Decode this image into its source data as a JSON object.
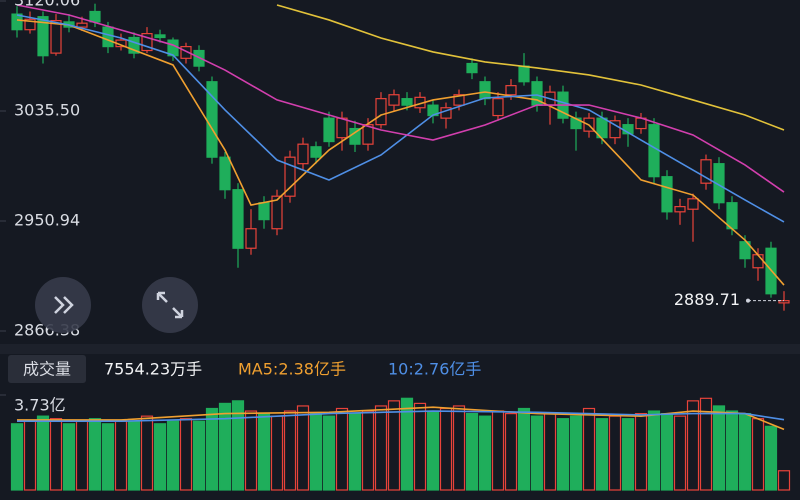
{
  "chart_data": {
    "type": "candlestick",
    "ylim": [
      2866.38,
      3120.06
    ],
    "yticks": [
      {
        "value": 3120.06,
        "label": "3120.06"
      },
      {
        "value": 3035.5,
        "label": "3035.50"
      },
      2950.94,
      2866.38
    ],
    "up_color": "#e8433a",
    "down_color": "#1fae5b",
    "open": [
      3110,
      3098,
      3108,
      3080,
      3104,
      3100,
      3112,
      3100,
      3085,
      3092,
      3082,
      3094,
      3090,
      3076,
      3082,
      3058,
      3000,
      2975,
      2930,
      2965,
      2945,
      2970,
      2995,
      3008,
      3030,
      3015,
      3022,
      3010,
      3025,
      3040,
      3045,
      3038,
      3040,
      3030,
      3040,
      3072,
      3058,
      3032,
      3048,
      3070,
      3058,
      3040,
      3050,
      3030,
      3020,
      3030,
      3015,
      3025,
      3022,
      3025,
      2985,
      2958,
      2960,
      2980,
      2995,
      2965,
      2935,
      2915,
      2930,
      2888
    ],
    "close": [
      3098,
      3106,
      3078,
      3105,
      3100,
      3103,
      3104,
      3085,
      3090,
      3080,
      3095,
      3092,
      3078,
      3085,
      3070,
      3000,
      2975,
      2930,
      2945,
      2952,
      2970,
      3000,
      3010,
      3000,
      3012,
      3030,
      3010,
      3025,
      3045,
      3048,
      3040,
      3046,
      3032,
      3038,
      3048,
      3065,
      3045,
      3045,
      3055,
      3058,
      3040,
      3050,
      3030,
      3022,
      3030,
      3015,
      3028,
      3018,
      3030,
      2985,
      2958,
      2962,
      2968,
      2998,
      2965,
      2945,
      2922,
      2925,
      2895,
      2889.71
    ],
    "high": [
      3116,
      3112,
      3112,
      3110,
      3110,
      3108,
      3118,
      3104,
      3095,
      3096,
      3100,
      3098,
      3092,
      3088,
      3086,
      3062,
      3004,
      2980,
      2960,
      2970,
      2975,
      3005,
      3015,
      3012,
      3035,
      3035,
      3028,
      3030,
      3050,
      3052,
      3050,
      3050,
      3044,
      3042,
      3052,
      3076,
      3062,
      3050,
      3060,
      3080,
      3062,
      3055,
      3055,
      3035,
      3034,
      3035,
      3032,
      3030,
      3034,
      3030,
      2990,
      2968,
      2972,
      3002,
      3000,
      2970,
      2940,
      2930,
      2935,
      2897
    ],
    "low": [
      3092,
      3095,
      3072,
      3078,
      3096,
      3097,
      3100,
      3080,
      3082,
      3076,
      3080,
      3088,
      3074,
      3072,
      3066,
      2995,
      2968,
      2915,
      2925,
      2945,
      2940,
      2965,
      2990,
      2995,
      3008,
      3005,
      3004,
      3005,
      3022,
      3035,
      3036,
      3034,
      3026,
      3022,
      3036,
      3060,
      3040,
      3028,
      3044,
      3055,
      3035,
      3025,
      3026,
      3005,
      3015,
      3010,
      3010,
      3008,
      3018,
      2980,
      2952,
      2948,
      2935,
      2975,
      2960,
      2940,
      2915,
      2905,
      2892,
      2882
    ],
    "ma_lines": [
      {
        "color": "#f0a030",
        "x": [
          0,
          4,
          8,
          12,
          16,
          18,
          20,
          24,
          28,
          32,
          36,
          40,
          44,
          48,
          52,
          56,
          59
        ],
        "values": [
          3105.5,
          3101.6,
          3086.2,
          3070.9,
          3005.5,
          2963.2,
          2967.1,
          3005.5,
          3032.4,
          3044,
          3050.1,
          3044,
          3024.7,
          2982.5,
          2970.9,
          2936.3,
          2901.7
        ]
      },
      {
        "color": "#4f8fe6",
        "x": [
          0,
          4,
          8,
          12,
          16,
          20,
          24,
          28,
          32,
          36,
          40,
          44,
          48,
          52,
          56,
          59
        ],
        "values": [
          3109.3,
          3101.6,
          3091.6,
          3078.5,
          3036.3,
          2997.8,
          2982.5,
          3001.7,
          3032.4,
          3045.5,
          3047.8,
          3036.3,
          3013.2,
          2990.1,
          2967.1,
          2950.2
        ]
      },
      {
        "color": "#d23fae",
        "x": [
          0,
          4,
          8,
          12,
          16,
          20,
          24,
          28,
          32,
          36,
          40,
          44,
          48,
          52,
          56,
          59
        ],
        "values": [
          3117,
          3109.3,
          3097.8,
          3086.2,
          3067,
          3044,
          3032.4,
          3020.9,
          3013.2,
          3024.7,
          3040.1,
          3040.1,
          3030.1,
          3017.1,
          2994,
          2973.2
        ]
      },
      {
        "color": "#e2c23a",
        "x": [
          20,
          24,
          28,
          32,
          36,
          40,
          44,
          48,
          52,
          56,
          59
        ],
        "values": [
          3117,
          3105.5,
          3091.6,
          3080.9,
          3073.2,
          3068.6,
          3063.2,
          3055.5,
          3044,
          3032.4,
          3020.9
        ]
      }
    ],
    "volume_title": "成交量",
    "volume_current": "7554.23万手",
    "volume_ma5_label": "MA5:2.38亿手",
    "volume_ma10_label": "10:2.76亿手",
    "volume_ylim": [
      0,
      3.73
    ],
    "volume_yticks": [
      {
        "value": 3.73,
        "label": "3.73亿"
      }
    ],
    "volume": [
      2.6,
      2.7,
      2.9,
      2.8,
      2.6,
      2.7,
      2.8,
      2.6,
      2.7,
      2.7,
      2.9,
      2.6,
      2.7,
      2.8,
      2.7,
      3.2,
      3.4,
      3.5,
      3.1,
      3.0,
      2.9,
      3.1,
      3.3,
      3.0,
      2.9,
      3.2,
      3.0,
      3.1,
      3.3,
      3.5,
      3.6,
      3.4,
      3.1,
      3.2,
      3.3,
      3.0,
      2.9,
      3.1,
      3.0,
      3.2,
      2.9,
      3.0,
      2.8,
      2.9,
      3.2,
      2.8,
      2.9,
      2.8,
      3.0,
      3.1,
      3.0,
      2.9,
      3.5,
      3.6,
      3.3,
      3.1,
      3.0,
      2.8,
      2.5,
      0.755423
    ],
    "volume_ma": [
      {
        "color": "#f0a030",
        "x": [
          0,
          8,
          16,
          24,
          32,
          40,
          48,
          52,
          56,
          59
        ],
        "values": [
          2.75,
          2.75,
          3.0,
          3.05,
          3.25,
          3.0,
          2.9,
          3.1,
          3.0,
          2.38
        ]
      },
      {
        "color": "#4f8fe6",
        "x": [
          0,
          8,
          16,
          24,
          32,
          40,
          48,
          52,
          56,
          59
        ],
        "values": [
          2.7,
          2.7,
          2.8,
          3.0,
          3.1,
          3.05,
          2.95,
          3.0,
          3.0,
          2.76
        ]
      }
    ]
  }
}
